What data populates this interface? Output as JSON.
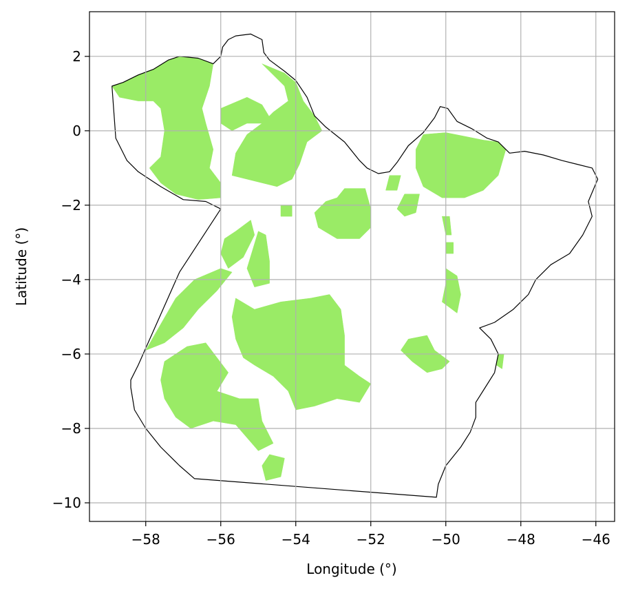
{
  "chart_data": {
    "type": "map",
    "xlabel": "Longitude (°)",
    "ylabel": "Latitude (°)",
    "xlim": [
      -59.5,
      -45.5
    ],
    "ylim": [
      -10.5,
      3.2
    ],
    "grid": true,
    "xticks": [
      {
        "value": -58,
        "label": "−58"
      },
      {
        "value": -56,
        "label": "−56"
      },
      {
        "value": -54,
        "label": "−54"
      },
      {
        "value": -52,
        "label": "−52"
      },
      {
        "value": -50,
        "label": "−50"
      },
      {
        "value": -48,
        "label": "−48"
      },
      {
        "value": -46,
        "label": "−46"
      }
    ],
    "yticks": [
      {
        "value": 2,
        "label": "2"
      },
      {
        "value": 0,
        "label": "0"
      },
      {
        "value": -2,
        "label": "−2"
      },
      {
        "value": -4,
        "label": "−4"
      },
      {
        "value": -6,
        "label": "−6"
      },
      {
        "value": -8,
        "label": "−8"
      },
      {
        "value": -10,
        "label": "−10"
      }
    ],
    "boundary": {
      "name": "state-boundary",
      "color": "#000000",
      "coords": [
        [
          -58.9,
          1.2
        ],
        [
          -58.6,
          1.3
        ],
        [
          -58.2,
          1.5
        ],
        [
          -57.8,
          1.65
        ],
        [
          -57.4,
          1.9
        ],
        [
          -57.1,
          2.0
        ],
        [
          -56.6,
          1.95
        ],
        [
          -56.2,
          1.8
        ],
        [
          -56.0,
          2.0
        ],
        [
          -55.95,
          2.25
        ],
        [
          -55.8,
          2.45
        ],
        [
          -55.6,
          2.55
        ],
        [
          -55.2,
          2.6
        ],
        [
          -54.9,
          2.45
        ],
        [
          -54.85,
          2.1
        ],
        [
          -54.7,
          1.9
        ],
        [
          -54.3,
          1.6
        ],
        [
          -54.0,
          1.35
        ],
        [
          -53.7,
          0.9
        ],
        [
          -53.5,
          0.4
        ],
        [
          -53.2,
          0.1
        ],
        [
          -52.7,
          -0.3
        ],
        [
          -52.3,
          -0.8
        ],
        [
          -52.1,
          -1.0
        ],
        [
          -51.8,
          -1.15
        ],
        [
          -51.5,
          -1.1
        ],
        [
          -51.3,
          -0.85
        ],
        [
          -51.0,
          -0.4
        ],
        [
          -50.6,
          -0.05
        ],
        [
          -50.3,
          0.35
        ],
        [
          -50.15,
          0.65
        ],
        [
          -49.95,
          0.6
        ],
        [
          -49.7,
          0.25
        ],
        [
          -49.3,
          0.05
        ],
        [
          -48.9,
          -0.2
        ],
        [
          -48.6,
          -0.3
        ],
        [
          -48.3,
          -0.6
        ],
        [
          -47.9,
          -0.55
        ],
        [
          -47.4,
          -0.65
        ],
        [
          -46.9,
          -0.8
        ],
        [
          -46.5,
          -0.9
        ],
        [
          -46.1,
          -1.0
        ],
        [
          -45.95,
          -1.3
        ],
        [
          -46.2,
          -1.9
        ],
        [
          -46.1,
          -2.3
        ],
        [
          -46.35,
          -2.8
        ],
        [
          -46.7,
          -3.3
        ],
        [
          -47.2,
          -3.6
        ],
        [
          -47.6,
          -4.0
        ],
        [
          -47.8,
          -4.4
        ],
        [
          -48.2,
          -4.8
        ],
        [
          -48.7,
          -5.15
        ],
        [
          -49.1,
          -5.3
        ],
        [
          -48.8,
          -5.6
        ],
        [
          -48.6,
          -6.0
        ],
        [
          -48.7,
          -6.5
        ],
        [
          -48.95,
          -6.9
        ],
        [
          -49.2,
          -7.3
        ],
        [
          -49.2,
          -7.7
        ],
        [
          -49.35,
          -8.1
        ],
        [
          -49.6,
          -8.5
        ],
        [
          -50.0,
          -9.0
        ],
        [
          -50.2,
          -9.5
        ],
        [
          -50.25,
          -9.85
        ],
        [
          -56.7,
          -9.35
        ],
        [
          -57.1,
          -9.0
        ],
        [
          -57.6,
          -8.5
        ],
        [
          -58.0,
          -8.0
        ],
        [
          -58.3,
          -7.5
        ],
        [
          -58.4,
          -6.9
        ],
        [
          -58.4,
          -6.7
        ],
        [
          -58.2,
          -6.3
        ],
        [
          -57.1,
          -3.8
        ],
        [
          -56.0,
          -2.1
        ],
        [
          -56.4,
          -1.9
        ],
        [
          -57.0,
          -1.85
        ],
        [
          -57.6,
          -1.5
        ],
        [
          -58.2,
          -1.1
        ],
        [
          -58.5,
          -0.8
        ],
        [
          -58.8,
          -0.2
        ]
      ]
    },
    "regions": {
      "color": "#9aeb66",
      "polygons": [
        [
          [
            -58.9,
            1.2
          ],
          [
            -58.6,
            1.3
          ],
          [
            -58.2,
            1.5
          ],
          [
            -57.8,
            1.65
          ],
          [
            -57.4,
            1.9
          ],
          [
            -57.1,
            2.0
          ],
          [
            -56.6,
            1.95
          ],
          [
            -56.2,
            1.8
          ],
          [
            -56.3,
            1.2
          ],
          [
            -56.5,
            0.6
          ],
          [
            -56.4,
            0.2
          ],
          [
            -56.2,
            -0.5
          ],
          [
            -56.3,
            -1.0
          ],
          [
            -56.0,
            -1.4
          ],
          [
            -56.0,
            -1.8
          ],
          [
            -56.6,
            -1.85
          ],
          [
            -57.2,
            -1.7
          ],
          [
            -57.6,
            -1.4
          ],
          [
            -57.9,
            -1.0
          ],
          [
            -57.6,
            -0.7
          ],
          [
            -57.5,
            0.0
          ],
          [
            -57.6,
            0.6
          ],
          [
            -57.8,
            0.8
          ],
          [
            -58.2,
            0.8
          ],
          [
            -58.7,
            0.9
          ]
        ],
        [
          [
            -54.9,
            1.8
          ],
          [
            -54.3,
            1.55
          ],
          [
            -54.0,
            1.3
          ],
          [
            -53.8,
            0.8
          ],
          [
            -53.5,
            0.4
          ],
          [
            -53.3,
            0.0
          ],
          [
            -53.7,
            -0.3
          ],
          [
            -53.9,
            -0.9
          ],
          [
            -54.1,
            -1.3
          ],
          [
            -54.5,
            -1.5
          ],
          [
            -55.3,
            -1.3
          ],
          [
            -55.7,
            -1.2
          ],
          [
            -55.6,
            -0.6
          ],
          [
            -55.3,
            -0.1
          ],
          [
            -54.9,
            0.2
          ],
          [
            -54.6,
            0.5
          ],
          [
            -54.2,
            0.8
          ],
          [
            -54.3,
            1.2
          ]
        ],
        [
          [
            -56.0,
            0.6
          ],
          [
            -55.3,
            0.9
          ],
          [
            -54.9,
            0.7
          ],
          [
            -54.6,
            0.2
          ],
          [
            -55.3,
            0.2
          ],
          [
            -55.7,
            0.0
          ],
          [
            -56.0,
            0.2
          ]
        ],
        [
          [
            -50.6,
            -0.1
          ],
          [
            -50.0,
            -0.05
          ],
          [
            -49.5,
            -0.15
          ],
          [
            -49.0,
            -0.25
          ],
          [
            -48.6,
            -0.3
          ],
          [
            -48.4,
            -0.5
          ],
          [
            -48.6,
            -1.2
          ],
          [
            -49.0,
            -1.6
          ],
          [
            -49.5,
            -1.8
          ],
          [
            -50.1,
            -1.8
          ],
          [
            -50.6,
            -1.5
          ],
          [
            -50.8,
            -1.0
          ],
          [
            -50.8,
            -0.5
          ]
        ],
        [
          [
            -52.7,
            -1.55
          ],
          [
            -52.15,
            -1.55
          ],
          [
            -52.0,
            -2.1
          ],
          [
            -52.0,
            -2.6
          ],
          [
            -52.3,
            -2.9
          ],
          [
            -52.9,
            -2.9
          ],
          [
            -53.4,
            -2.6
          ],
          [
            -53.5,
            -2.2
          ],
          [
            -53.2,
            -1.9
          ],
          [
            -52.9,
            -1.8
          ]
        ],
        [
          [
            -55.6,
            -2.7
          ],
          [
            -55.2,
            -2.4
          ],
          [
            -55.1,
            -2.8
          ],
          [
            -55.4,
            -3.4
          ],
          [
            -55.8,
            -3.7
          ],
          [
            -56.0,
            -3.3
          ],
          [
            -55.9,
            -2.9
          ]
        ],
        [
          [
            -55.0,
            -2.7
          ],
          [
            -54.8,
            -2.8
          ],
          [
            -54.7,
            -3.5
          ],
          [
            -54.7,
            -4.1
          ],
          [
            -55.1,
            -4.2
          ],
          [
            -55.3,
            -3.7
          ]
        ],
        [
          [
            -56.0,
            -3.7
          ],
          [
            -55.7,
            -3.8
          ],
          [
            -56.1,
            -4.3
          ],
          [
            -56.6,
            -4.8
          ],
          [
            -57.0,
            -5.3
          ],
          [
            -57.5,
            -5.7
          ],
          [
            -58.0,
            -5.9
          ],
          [
            -57.6,
            -5.2
          ],
          [
            -57.2,
            -4.5
          ],
          [
            -56.7,
            -4.0
          ]
        ],
        [
          [
            -55.6,
            -4.5
          ],
          [
            -55.1,
            -4.8
          ],
          [
            -54.4,
            -4.6
          ],
          [
            -53.6,
            -4.5
          ],
          [
            -53.1,
            -4.4
          ],
          [
            -52.8,
            -4.8
          ],
          [
            -52.7,
            -5.5
          ],
          [
            -52.7,
            -6.3
          ],
          [
            -52.3,
            -6.6
          ],
          [
            -52.0,
            -6.8
          ],
          [
            -52.3,
            -7.3
          ],
          [
            -52.9,
            -7.2
          ],
          [
            -53.5,
            -7.4
          ],
          [
            -54.0,
            -7.5
          ],
          [
            -54.2,
            -7.0
          ],
          [
            -54.6,
            -6.6
          ],
          [
            -55.1,
            -6.3
          ],
          [
            -55.4,
            -6.1
          ],
          [
            -55.6,
            -5.6
          ],
          [
            -55.7,
            -5.0
          ]
        ],
        [
          [
            -57.5,
            -6.2
          ],
          [
            -56.9,
            -5.8
          ],
          [
            -56.4,
            -5.7
          ],
          [
            -56.1,
            -6.1
          ],
          [
            -55.8,
            -6.5
          ],
          [
            -56.1,
            -7.0
          ],
          [
            -55.5,
            -7.2
          ],
          [
            -55.0,
            -7.2
          ],
          [
            -54.9,
            -7.8
          ],
          [
            -54.6,
            -8.4
          ],
          [
            -55.0,
            -8.6
          ],
          [
            -55.6,
            -7.9
          ],
          [
            -56.2,
            -7.8
          ],
          [
            -56.8,
            -8.0
          ],
          [
            -57.2,
            -7.7
          ],
          [
            -57.5,
            -7.2
          ],
          [
            -57.6,
            -6.7
          ]
        ],
        [
          [
            -51.0,
            -5.6
          ],
          [
            -50.5,
            -5.5
          ],
          [
            -50.3,
            -5.9
          ],
          [
            -49.9,
            -6.2
          ],
          [
            -50.1,
            -6.4
          ],
          [
            -50.5,
            -6.5
          ],
          [
            -50.9,
            -6.2
          ],
          [
            -51.2,
            -5.9
          ]
        ],
        [
          [
            -50.0,
            -3.7
          ],
          [
            -49.7,
            -3.9
          ],
          [
            -49.6,
            -4.4
          ],
          [
            -49.7,
            -4.9
          ],
          [
            -50.1,
            -4.6
          ],
          [
            -50.0,
            -4.1
          ]
        ],
        [
          [
            -51.1,
            -1.7
          ],
          [
            -50.7,
            -1.7
          ],
          [
            -50.8,
            -2.2
          ],
          [
            -51.1,
            -2.3
          ],
          [
            -51.3,
            -2.1
          ]
        ],
        [
          [
            -54.7,
            -8.7
          ],
          [
            -54.3,
            -8.8
          ],
          [
            -54.4,
            -9.3
          ],
          [
            -54.8,
            -9.4
          ],
          [
            -54.9,
            -9.0
          ]
        ],
        [
          [
            -51.5,
            -1.2
          ],
          [
            -51.2,
            -1.2
          ],
          [
            -51.3,
            -1.6
          ],
          [
            -51.6,
            -1.6
          ]
        ],
        [
          [
            -48.6,
            -6.0
          ],
          [
            -48.45,
            -6.0
          ],
          [
            -48.5,
            -6.4
          ],
          [
            -48.65,
            -6.3
          ]
        ],
        [
          [
            -50.1,
            -2.3
          ],
          [
            -49.9,
            -2.3
          ],
          [
            -49.85,
            -2.8
          ],
          [
            -50.0,
            -2.8
          ]
        ],
        [
          [
            -50.0,
            -3.0
          ],
          [
            -49.8,
            -3.0
          ],
          [
            -49.8,
            -3.3
          ],
          [
            -50.0,
            -3.3
          ]
        ],
        [
          [
            -54.4,
            -2.0
          ],
          [
            -54.1,
            -2.0
          ],
          [
            -54.1,
            -2.3
          ],
          [
            -54.4,
            -2.3
          ]
        ]
      ]
    }
  }
}
